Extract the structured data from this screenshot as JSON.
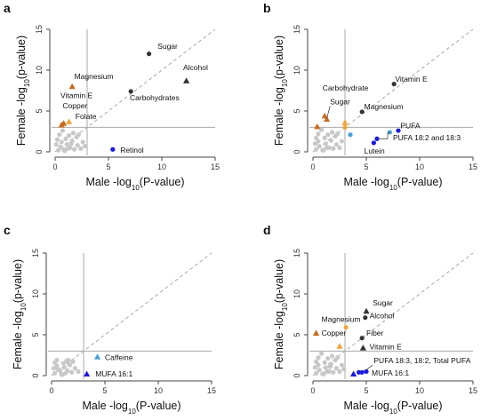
{
  "colors": {
    "grey": "#c8c8c8",
    "black": "#333333",
    "orange": "#f0a63c",
    "darkorange": "#c8691e",
    "blue": "#1a1adf",
    "lightblue": "#4a9fd8",
    "refline": "#aaaaaa"
  },
  "chart_data": [
    {
      "panel": "a",
      "type": "scatter",
      "xlabel": "Male  -log10(P-value)",
      "ylabel": "Female  -log10(p-value)",
      "xlim": [
        0,
        15
      ],
      "ylim": [
        0,
        15
      ],
      "xticks": [
        "0",
        "5",
        "10",
        "15"
      ],
      "yticks": [
        "0",
        "5",
        "10",
        "15"
      ],
      "threshold": 3,
      "diagonal": true,
      "grey_points": [
        [
          0.3,
          0.2
        ],
        [
          0.5,
          0.6
        ],
        [
          0.8,
          0.3
        ],
        [
          1.1,
          0.9
        ],
        [
          1.4,
          0.5
        ],
        [
          0.6,
          1.2
        ],
        [
          1.8,
          0.3
        ],
        [
          2.1,
          0.8
        ],
        [
          0.2,
          1.5
        ],
        [
          1.0,
          1.6
        ],
        [
          1.6,
          1.3
        ],
        [
          2.4,
          0.4
        ],
        [
          0.4,
          2.1
        ],
        [
          1.3,
          2.0
        ],
        [
          2.0,
          1.8
        ],
        [
          2.6,
          1.2
        ],
        [
          0.9,
          0.1
        ],
        [
          1.7,
          2.3
        ],
        [
          0.7,
          2.6
        ],
        [
          2.2,
          2.1
        ],
        [
          1.2,
          0.4
        ],
        [
          0.1,
          0.9
        ],
        [
          2.8,
          0.7
        ],
        [
          1.5,
          1.0
        ]
      ],
      "points": [
        {
          "label": "Sugar",
          "x": 8.8,
          "y": 12.0,
          "color": "black",
          "shape": "circle"
        },
        {
          "label": "Alcohol",
          "x": 12.3,
          "y": 8.7,
          "color": "black",
          "shape": "triangle"
        },
        {
          "label": "Carbohydrates",
          "x": 7.1,
          "y": 7.4,
          "color": "black",
          "shape": "circle"
        },
        {
          "label": "Magnesium",
          "x": 1.6,
          "y": 8.0,
          "color": "darkorange",
          "shape": "triangle"
        },
        {
          "label": "Vitamin E",
          "x": 0.6,
          "y": 3.3,
          "color": "darkorange",
          "shape": "triangle"
        },
        {
          "label": "Copper",
          "x": 0.8,
          "y": 3.5,
          "color": "darkorange",
          "shape": "triangle"
        },
        {
          "label": "Folate",
          "x": 1.3,
          "y": 3.7,
          "color": "orange",
          "shape": "triangle"
        },
        {
          "label": "Retinol",
          "x": 5.4,
          "y": 0.3,
          "color": "blue",
          "shape": "circle"
        }
      ],
      "annotations": [
        {
          "text": "Sugar",
          "x": 9.6,
          "y": 12.6
        },
        {
          "text": "Alcohol",
          "x": 12.0,
          "y": 10.0
        },
        {
          "text": "Carbohydrates",
          "x": 7.0,
          "y": 6.3
        },
        {
          "text": "Magnesium",
          "x": 1.8,
          "y": 8.9
        },
        {
          "text": "Vitamin E",
          "x": 0.5,
          "y": 6.6
        },
        {
          "text": "Copper",
          "x": 0.7,
          "y": 5.3
        },
        {
          "text": "Folate",
          "x": 1.9,
          "y": 4.0
        },
        {
          "text": "Retinol",
          "x": 6.1,
          "y": -0.1
        }
      ]
    },
    {
      "panel": "b",
      "type": "scatter",
      "xlabel": "Male  -log10(P-value)",
      "ylabel": "Female  -log10(p-value)",
      "xlim": [
        0,
        15
      ],
      "ylim": [
        0,
        15
      ],
      "xticks": [
        "0",
        "5",
        "10",
        "15"
      ],
      "yticks": [
        "0",
        "5",
        "10",
        "15"
      ],
      "threshold": 3,
      "diagonal": true,
      "grey_points": [
        [
          0.3,
          0.3
        ],
        [
          0.6,
          0.7
        ],
        [
          0.9,
          0.2
        ],
        [
          1.2,
          1.0
        ],
        [
          1.5,
          0.5
        ],
        [
          0.5,
          1.3
        ],
        [
          1.9,
          0.4
        ],
        [
          2.2,
          0.9
        ],
        [
          0.3,
          1.7
        ],
        [
          1.1,
          1.7
        ],
        [
          1.7,
          1.4
        ],
        [
          2.5,
          0.5
        ],
        [
          0.5,
          2.2
        ],
        [
          1.4,
          2.1
        ],
        [
          2.1,
          1.9
        ],
        [
          2.7,
          1.3
        ],
        [
          1.0,
          0.2
        ],
        [
          1.8,
          2.4
        ],
        [
          0.8,
          2.7
        ],
        [
          2.3,
          2.2
        ],
        [
          1.3,
          0.5
        ],
        [
          0.2,
          1.0
        ]
      ],
      "points": [
        {
          "label": "Vitamin E",
          "x": 7.6,
          "y": 8.3,
          "color": "black",
          "shape": "circle"
        },
        {
          "label": "Magnesium",
          "x": 4.6,
          "y": 4.9,
          "color": "black",
          "shape": "circle"
        },
        {
          "label": "Carbohydrate",
          "x": 1.1,
          "y": 4.4,
          "color": "darkorange",
          "shape": "triangle"
        },
        {
          "label": "Sugar",
          "x": 1.3,
          "y": 4.0,
          "color": "darkorange",
          "shape": "triangle"
        },
        {
          "label": "",
          "x": 0.4,
          "y": 3.1,
          "color": "darkorange",
          "shape": "triangle"
        },
        {
          "label": "",
          "x": 3.0,
          "y": 3.6,
          "color": "orange",
          "shape": "triangle"
        },
        {
          "label": "",
          "x": 3.0,
          "y": 3.0,
          "color": "orange",
          "shape": "circle"
        },
        {
          "label": "",
          "x": 3.5,
          "y": 2.1,
          "color": "lightblue",
          "shape": "circle"
        },
        {
          "label": "PUFA",
          "x": 7.2,
          "y": 2.4,
          "color": "lightblue",
          "shape": "circle"
        },
        {
          "label": "",
          "x": 8.0,
          "y": 2.6,
          "color": "blue",
          "shape": "circle"
        },
        {
          "label": "PUFA 18:2 and 18:3",
          "x": 6.0,
          "y": 1.6,
          "color": "blue",
          "shape": "circle"
        },
        {
          "label": "Lutein",
          "x": 5.7,
          "y": 1.1,
          "color": "blue",
          "shape": "circle"
        }
      ],
      "annotations": [
        {
          "text": "Vitamin E",
          "x": 7.7,
          "y": 8.6
        },
        {
          "text": "Magnesium",
          "x": 4.8,
          "y": 5.2
        },
        {
          "text": "Carbohydrate",
          "x": 0.9,
          "y": 7.5
        },
        {
          "text": "Sugar",
          "x": 1.6,
          "y": 5.8
        },
        {
          "text": "PUFA",
          "x": 8.2,
          "y": 2.9
        },
        {
          "text": "PUFA 18:2 and 18:3",
          "x": 7.5,
          "y": 1.4
        },
        {
          "text": "Lutein",
          "x": 4.8,
          "y": -0.2
        }
      ]
    },
    {
      "panel": "c",
      "type": "scatter",
      "xlabel": "Male  -log10(P-value)",
      "ylabel": "Female  -log10(p-value)",
      "xlim": [
        0,
        15
      ],
      "ylim": [
        0,
        15
      ],
      "xticks": [
        "0",
        "5",
        "10",
        "15"
      ],
      "yticks": [
        "0",
        "5",
        "10",
        "15"
      ],
      "threshold": 3,
      "diagonal": true,
      "grey_points": [
        [
          0.3,
          0.3
        ],
        [
          0.6,
          0.8
        ],
        [
          0.9,
          0.2
        ],
        [
          1.2,
          1.0
        ],
        [
          1.5,
          0.6
        ],
        [
          0.5,
          1.2
        ],
        [
          1.9,
          0.4
        ],
        [
          2.2,
          0.9
        ],
        [
          0.3,
          1.6
        ],
        [
          1.1,
          1.5
        ],
        [
          1.7,
          1.3
        ],
        [
          2.5,
          0.5
        ],
        [
          0.5,
          1.9
        ],
        [
          1.4,
          1.8
        ],
        [
          2.0,
          1.7
        ],
        [
          1.0,
          0.1
        ],
        [
          0.8,
          0.6
        ],
        [
          1.3,
          0.3
        ],
        [
          0.2,
          0.9
        ],
        [
          1.6,
          1.9
        ]
      ],
      "points": [
        {
          "label": "Caffeine",
          "x": 4.3,
          "y": 2.3,
          "color": "lightblue",
          "shape": "triangle"
        },
        {
          "label": "MUFA 16:1",
          "x": 3.3,
          "y": 0.2,
          "color": "blue",
          "shape": "triangle"
        }
      ],
      "annotations": [
        {
          "text": "Caffeine",
          "x": 5.0,
          "y": 1.9
        },
        {
          "text": "MUFA 16:1",
          "x": 4.1,
          "y": -0.1
        }
      ]
    },
    {
      "panel": "d",
      "type": "scatter",
      "xlabel": "Male  -log10(P-value)",
      "ylabel": "Female  -log10(p-value)",
      "xlim": [
        0,
        15
      ],
      "ylim": [
        0,
        15
      ],
      "xticks": [
        "0",
        "5",
        "10",
        "15"
      ],
      "yticks": [
        "0",
        "5",
        "10",
        "15"
      ],
      "threshold": 3,
      "diagonal": true,
      "grey_points": [
        [
          0.3,
          0.3
        ],
        [
          0.6,
          0.7
        ],
        [
          0.9,
          0.2
        ],
        [
          1.2,
          1.0
        ],
        [
          1.5,
          0.5
        ],
        [
          0.5,
          1.3
        ],
        [
          1.9,
          0.4
        ],
        [
          2.2,
          0.9
        ],
        [
          0.3,
          1.7
        ],
        [
          1.1,
          1.6
        ],
        [
          1.7,
          1.4
        ],
        [
          2.5,
          0.5
        ],
        [
          0.5,
          2.2
        ],
        [
          1.4,
          2.1
        ],
        [
          2.1,
          1.9
        ],
        [
          2.7,
          1.3
        ],
        [
          1.0,
          0.2
        ],
        [
          1.8,
          2.4
        ],
        [
          0.8,
          2.7
        ],
        [
          2.3,
          2.2
        ],
        [
          1.3,
          0.5
        ],
        [
          0.2,
          1.0
        ],
        [
          2.9,
          0.8
        ],
        [
          1.6,
          1.1
        ]
      ],
      "points": [
        {
          "label": "Sugar",
          "x": 5.0,
          "y": 7.9,
          "color": "black",
          "shape": "triangle"
        },
        {
          "label": "Alcohol",
          "x": 4.9,
          "y": 7.1,
          "color": "black",
          "shape": "circle"
        },
        {
          "label": "Magnesium",
          "x": 3.1,
          "y": 5.9,
          "color": "orange",
          "shape": "circle"
        },
        {
          "label": "Copper",
          "x": 0.3,
          "y": 5.2,
          "color": "darkorange",
          "shape": "triangle"
        },
        {
          "label": "Fiber",
          "x": 4.6,
          "y": 4.6,
          "color": "black",
          "shape": "circle"
        },
        {
          "label": "Vitamin E",
          "x": 4.7,
          "y": 3.4,
          "color": "black",
          "shape": "triangle"
        },
        {
          "label": "",
          "x": 2.5,
          "y": 3.6,
          "color": "orange",
          "shape": "triangle"
        },
        {
          "label": "PUFA 18:3, 18:2, Total PUFA",
          "x": 4.3,
          "y": 0.4,
          "color": "blue",
          "shape": "circle"
        },
        {
          "label": "",
          "x": 4.6,
          "y": 0.4,
          "color": "blue",
          "shape": "circle"
        },
        {
          "label": "",
          "x": 5.0,
          "y": 0.5,
          "color": "blue",
          "shape": "circle"
        },
        {
          "label": "MUFA 16:1",
          "x": 3.8,
          "y": 0.2,
          "color": "blue",
          "shape": "triangle"
        }
      ],
      "annotations": [
        {
          "text": "Sugar",
          "x": 5.6,
          "y": 8.6
        },
        {
          "text": "Alcohol",
          "x": 5.3,
          "y": 7.0
        },
        {
          "text": "Magnesium",
          "x": 0.8,
          "y": 6.6
        },
        {
          "text": "Copper",
          "x": 0.8,
          "y": 4.9
        },
        {
          "text": "Fiber",
          "x": 5.0,
          "y": 4.9
        },
        {
          "text": "Vitamin E",
          "x": 5.3,
          "y": 3.2
        },
        {
          "text": "PUFA 18:3, 18:2, Total PUFA",
          "x": 5.7,
          "y": 1.5
        },
        {
          "text": "MUFA 16:1",
          "x": 5.5,
          "y": 0.0
        }
      ]
    }
  ]
}
